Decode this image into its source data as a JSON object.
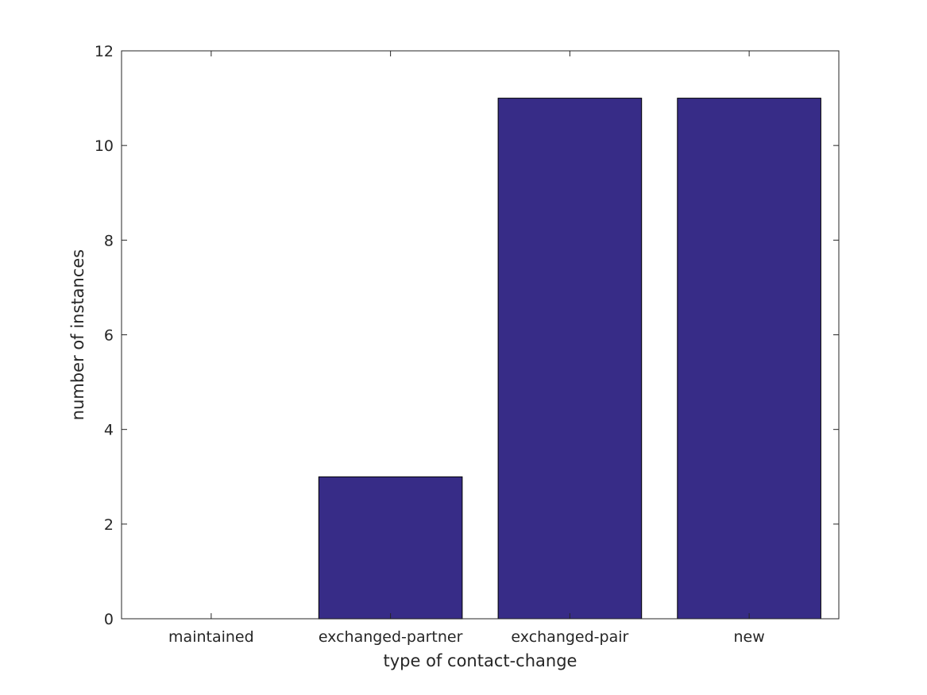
{
  "chart_data": {
    "type": "bar",
    "categories": [
      "maintained",
      "exchanged-partner",
      "exchanged-pair",
      "new"
    ],
    "values": [
      0,
      3,
      11,
      11
    ],
    "xlabel": "type of contact-change",
    "ylabel": "number of instances",
    "ylim": [
      0,
      12
    ],
    "yticks": [
      0,
      2,
      4,
      6,
      8,
      10,
      12
    ],
    "grid": false,
    "legend": "none",
    "bar_color": "#372c87",
    "bar_edge_color": "#000000",
    "axis_color": "#262626"
  }
}
